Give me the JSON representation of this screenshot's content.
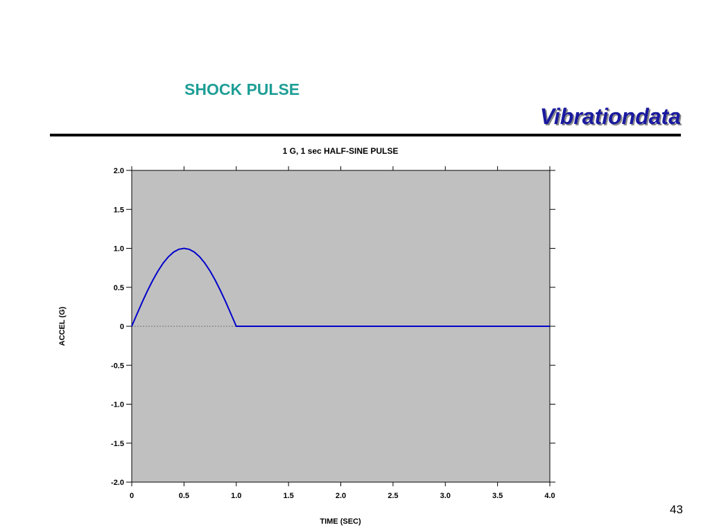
{
  "slide": {
    "title": "SHOCK PULSE",
    "brand": "Vibrationdata",
    "page_number": "43"
  },
  "colors": {
    "plot_bg": "#c0c0c0",
    "series": "#0000cc",
    "title": "#1e9e96",
    "brand": "#1a1aa0"
  },
  "chart_data": {
    "type": "line",
    "title": "1 G, 1 sec HALF-SINE PULSE",
    "xlabel": "TIME (SEC)",
    "ylabel": "ACCEL (G)",
    "xlim": [
      0,
      4.0
    ],
    "ylim": [
      -2.0,
      2.0
    ],
    "x_ticks": [
      "0",
      "0.5",
      "1.0",
      "1.5",
      "2.0",
      "2.5",
      "3.0",
      "3.5",
      "4.0"
    ],
    "y_ticks": [
      "2.0",
      "1.5",
      "1.0",
      "0.5",
      "0",
      "-0.5",
      "-1.0",
      "-1.5",
      "-2.0"
    ],
    "grid": false,
    "zero_line": "dashed",
    "series": [
      {
        "x": [
          0,
          0.05,
          0.1,
          0.15,
          0.2,
          0.25,
          0.3,
          0.35,
          0.4,
          0.45,
          0.5,
          0.55,
          0.6,
          0.65,
          0.7,
          0.75,
          0.8,
          0.85,
          0.9,
          0.95,
          1.0,
          4.0
        ],
        "y": [
          0,
          0.156,
          0.309,
          0.454,
          0.588,
          0.707,
          0.809,
          0.891,
          0.951,
          0.988,
          1.0,
          0.988,
          0.951,
          0.891,
          0.809,
          0.707,
          0.588,
          0.454,
          0.309,
          0.156,
          0,
          0
        ]
      }
    ]
  }
}
